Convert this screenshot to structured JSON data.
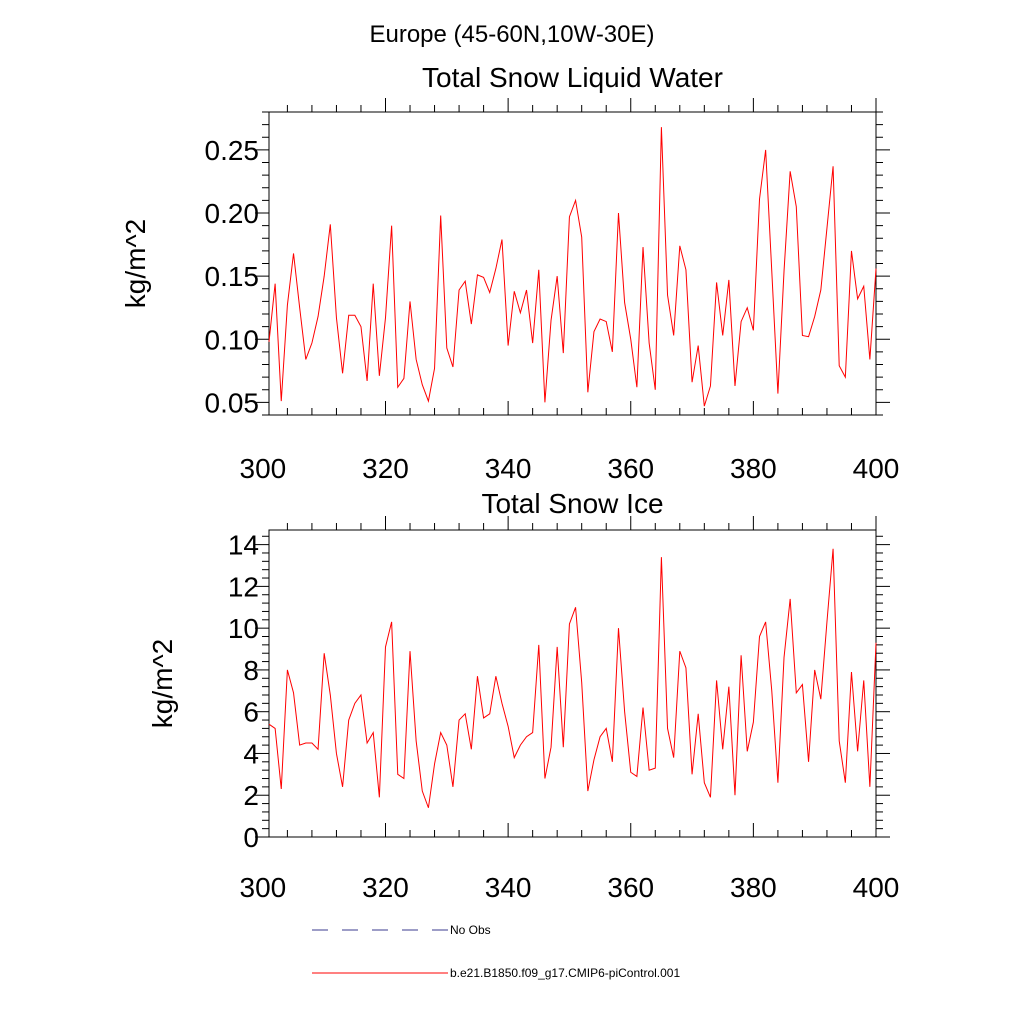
{
  "figure_title": "Europe (45-60N,10W-30E)",
  "legend": [
    {
      "label": "No Obs",
      "color": "#3b3b8f",
      "style": "dashed"
    },
    {
      "label": "b.e21.B1850.f09_g17.CMIP6-piControl.001",
      "color": "#ff0000",
      "style": "solid"
    }
  ],
  "chart_data": [
    {
      "type": "line",
      "title": "Total Snow Liquid Water",
      "xlabel": "",
      "ylabel": "kg/m^2",
      "xlim": [
        301,
        400
      ],
      "ylim": [
        0.04,
        0.28
      ],
      "xticks": [
        300,
        320,
        340,
        360,
        380,
        400
      ],
      "yticks": [
        0.05,
        0.1,
        0.15,
        0.2,
        0.25
      ],
      "ytick_labels": [
        "0.05",
        "0.10",
        "0.15",
        "0.20",
        "0.25"
      ],
      "grid": false,
      "series": [
        {
          "name": "b.e21.B1850.f09_g17.CMIP6-piControl.001",
          "color": "#ff0000",
          "x_start": 301,
          "values": [
            0.098,
            0.144,
            0.051,
            0.127,
            0.168,
            0.125,
            0.084,
            0.097,
            0.118,
            0.15,
            0.191,
            0.117,
            0.073,
            0.119,
            0.119,
            0.11,
            0.067,
            0.144,
            0.071,
            0.117,
            0.19,
            0.062,
            0.069,
            0.13,
            0.084,
            0.064,
            0.051,
            0.077,
            0.198,
            0.093,
            0.078,
            0.139,
            0.146,
            0.112,
            0.151,
            0.149,
            0.137,
            0.156,
            0.179,
            0.095,
            0.138,
            0.121,
            0.139,
            0.097,
            0.155,
            0.05,
            0.115,
            0.15,
            0.089,
            0.197,
            0.21,
            0.181,
            0.058,
            0.106,
            0.116,
            0.114,
            0.09,
            0.2,
            0.129,
            0.1,
            0.062,
            0.173,
            0.097,
            0.06,
            0.268,
            0.135,
            0.103,
            0.174,
            0.155,
            0.066,
            0.095,
            0.047,
            0.063,
            0.145,
            0.103,
            0.147,
            0.063,
            0.114,
            0.125,
            0.107,
            0.211,
            0.25,
            0.154,
            0.057,
            0.154,
            0.233,
            0.205,
            0.103,
            0.102,
            0.118,
            0.139,
            0.188,
            0.237,
            0.079,
            0.07,
            0.17,
            0.132,
            0.142,
            0.084,
            0.156
          ]
        }
      ]
    },
    {
      "type": "line",
      "title": "Total Snow Ice",
      "xlabel": "",
      "ylabel": "kg/m^2",
      "xlim": [
        301,
        400
      ],
      "ylim": [
        0,
        14.7
      ],
      "xticks": [
        300,
        320,
        340,
        360,
        380,
        400
      ],
      "yticks": [
        0,
        2,
        4,
        6,
        8,
        10,
        12,
        14
      ],
      "ytick_labels": [
        "0",
        "2",
        "4",
        "6",
        "8",
        "10",
        "12",
        "14"
      ],
      "grid": false,
      "series": [
        {
          "name": "b.e21.B1850.f09_g17.CMIP6-piControl.001",
          "color": "#ff0000",
          "x_start": 301,
          "values": [
            5.4,
            5.2,
            2.3,
            8.0,
            6.9,
            4.4,
            4.5,
            4.5,
            4.2,
            8.8,
            6.8,
            4.0,
            2.4,
            5.6,
            6.4,
            6.8,
            4.5,
            5.0,
            1.9,
            9.1,
            10.3,
            3.0,
            2.8,
            8.9,
            4.6,
            2.2,
            1.4,
            3.5,
            5.0,
            4.4,
            2.4,
            5.6,
            5.9,
            4.2,
            7.7,
            5.7,
            5.9,
            7.7,
            6.4,
            5.3,
            3.8,
            4.4,
            4.8,
            5.0,
            9.2,
            2.8,
            4.3,
            9.1,
            4.3,
            10.2,
            11.0,
            7.4,
            2.2,
            3.7,
            4.8,
            5.2,
            3.6,
            10.0,
            6.0,
            3.1,
            2.9,
            6.2,
            3.2,
            3.3,
            13.4,
            5.2,
            3.8,
            8.9,
            8.1,
            3.0,
            5.9,
            2.6,
            1.9,
            7.5,
            4.2,
            7.2,
            2.0,
            8.7,
            4.1,
            5.5,
            9.6,
            10.3,
            7.0,
            2.6,
            8.6,
            11.4,
            6.9,
            7.3,
            3.6,
            8.0,
            6.6,
            10.3,
            13.8,
            4.6,
            2.6,
            7.9,
            4.1,
            7.5,
            2.4,
            9.3
          ]
        }
      ]
    }
  ]
}
